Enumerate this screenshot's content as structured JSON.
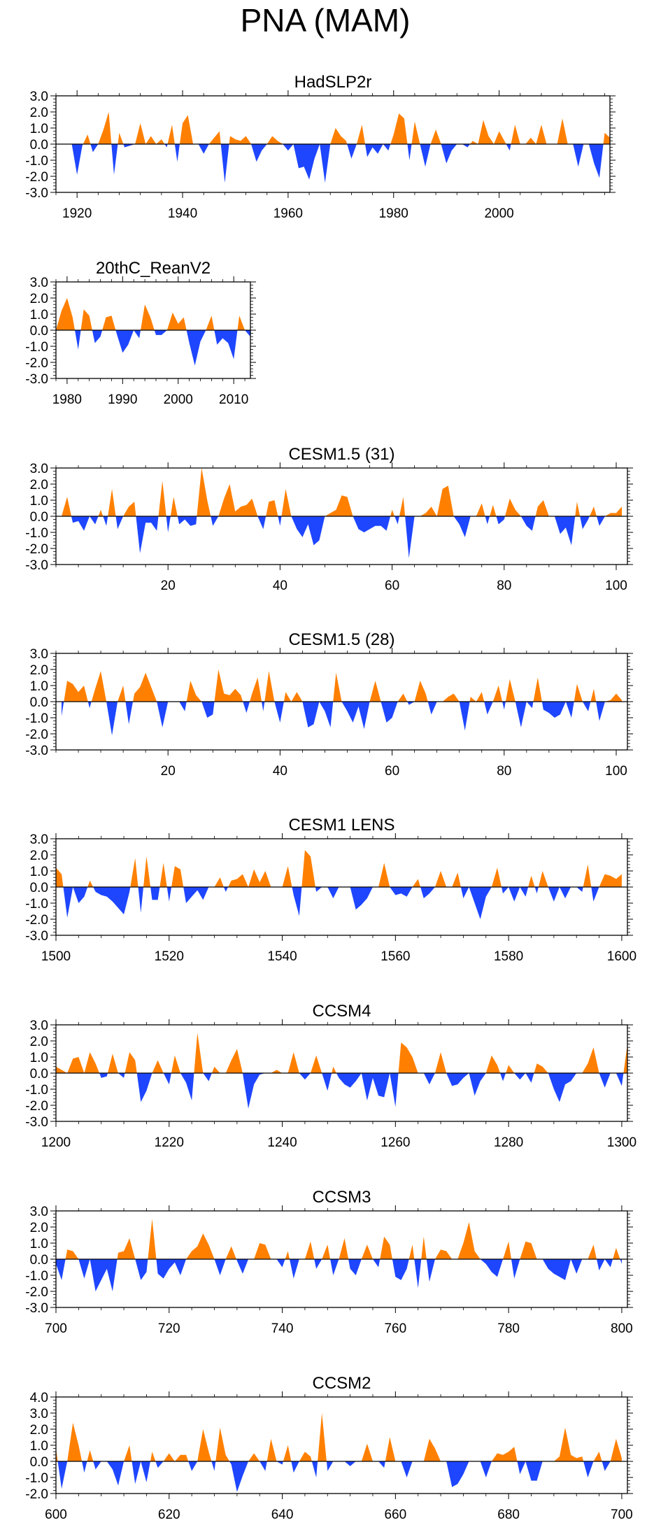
{
  "page_title": "PNA (MAM)",
  "colors": {
    "positive": "#ff8000",
    "negative": "#1e46ff",
    "axis": "#000000"
  },
  "chart_data": [
    {
      "type": "area",
      "title": "HadSLP2r",
      "xlim": [
        1916,
        2021
      ],
      "ylim": [
        -3.0,
        3.0
      ],
      "yticks": [
        -3.0,
        -2.0,
        -1.0,
        0.0,
        1.0,
        2.0,
        3.0
      ],
      "xticks": [
        1920,
        1940,
        1960,
        1980,
        2000
      ],
      "x_start": 1916,
      "values": [
        0,
        0,
        0,
        0,
        -1.9,
        -0.1,
        0.6,
        -0.5,
        0.0,
        0.9,
        2.0,
        -1.9,
        0.7,
        -0.2,
        -0.1,
        0.0,
        1.3,
        0.0,
        0.5,
        0.0,
        0.3,
        -0.2,
        1.2,
        -1.1,
        1.3,
        1.8,
        0.0,
        0.0,
        -0.6,
        0.0,
        0.4,
        0.8,
        -2.4,
        0.5,
        0.3,
        0.2,
        0.5,
        0.0,
        -1.1,
        -0.4,
        0.0,
        0.5,
        0.2,
        0.0,
        -0.4,
        0.0,
        -1.5,
        -1.4,
        -2.2,
        -0.9,
        0.0,
        -2.4,
        0.0,
        1.0,
        0.5,
        0.2,
        -0.9,
        0.0,
        1.2,
        -0.8,
        -0.2,
        -0.6,
        0.0,
        -0.4,
        0.6,
        1.9,
        1.6,
        -1.0,
        1.4,
        0.0,
        -1.4,
        0.0,
        0.9,
        0.0,
        -1.2,
        -0.4,
        0.0,
        0.0,
        -0.2,
        0.2,
        0.0,
        1.5,
        0.5,
        0.0,
        0.8,
        0.2,
        -0.4,
        1.2,
        0.0,
        0.0,
        0.4,
        0.0,
        1.2,
        0.0,
        0.0,
        0.0,
        1.6,
        0.0,
        0.0,
        -1.4,
        0.0,
        0.0,
        -1.2,
        -2.1,
        0.7,
        0.4
      ]
    },
    {
      "type": "area",
      "title": "20thC_ReanV2",
      "xlim": [
        1978,
        2013
      ],
      "ylim": [
        -3.0,
        3.0
      ],
      "yticks": [
        -3.0,
        -2.0,
        -1.0,
        0.0,
        1.0,
        2.0,
        3.0
      ],
      "xticks": [
        1980,
        1990,
        2000,
        2010
      ],
      "x_start": 1978,
      "values": [
        0,
        1.2,
        2.0,
        0.8,
        -1.2,
        1.3,
        0.9,
        -0.8,
        -0.4,
        0.8,
        0.9,
        -0.3,
        -1.4,
        -0.9,
        0.0,
        -0.5,
        1.6,
        0.8,
        -0.3,
        -0.3,
        0.0,
        1.1,
        0.4,
        0.8,
        -0.8,
        -2.2,
        -0.7,
        0.0,
        0.9,
        -0.9,
        -0.5,
        -0.8,
        -1.8,
        0.9,
        0.0,
        -0.4
      ]
    },
    {
      "type": "area",
      "title": "CESM1.5 (31)",
      "xlim": [
        0,
        102
      ],
      "ylim": [
        -3.0,
        3.0
      ],
      "yticks": [
        -3.0,
        -2.0,
        -1.0,
        0.0,
        1.0,
        2.0,
        3.0
      ],
      "xticks": [
        20,
        40,
        60,
        80,
        100
      ],
      "x_start": 1,
      "values": [
        0.0,
        1.2,
        -0.4,
        -0.3,
        -0.9,
        0.0,
        -0.5,
        0.4,
        -0.6,
        1.7,
        -0.8,
        0.0,
        0.6,
        0.9,
        -2.3,
        -0.4,
        -0.4,
        -0.9,
        2.2,
        -1.0,
        1.2,
        -0.5,
        -0.2,
        -0.6,
        -0.5,
        3.0,
        1.0,
        -0.6,
        0.0,
        1.1,
        2.0,
        0.3,
        0.6,
        0.7,
        1.1,
        0.0,
        -0.8,
        0.9,
        1.0,
        -0.6,
        1.7,
        0.0,
        -0.8,
        -1.3,
        -0.5,
        -1.8,
        -1.5,
        0.0,
        0.2,
        0.4,
        1.3,
        1.2,
        0.0,
        -0.8,
        -1.0,
        -0.8,
        -0.6,
        -0.6,
        -0.9,
        0.4,
        -0.5,
        1.2,
        -2.6,
        0.0,
        0.0,
        0.2,
        0.6,
        0.0,
        1.7,
        1.9,
        0.0,
        -0.5,
        -1.3,
        0.0,
        0.0,
        0.8,
        -0.5,
        0.7,
        -0.5,
        -0.2,
        1.1,
        0.4,
        0.0,
        -0.6,
        -0.9,
        0.6,
        1.0,
        0.0,
        0.0,
        -1.1,
        -0.7,
        -1.8,
        0.9,
        -0.8,
        -0.2,
        0.6,
        -0.6,
        0.0,
        0.2,
        0.2,
        0.6
      ]
    },
    {
      "type": "area",
      "title": "CESM1.5 (28)",
      "xlim": [
        0,
        102
      ],
      "ylim": [
        -3.0,
        3.0
      ],
      "yticks": [
        -3.0,
        -2.0,
        -1.0,
        0.0,
        1.0,
        2.0,
        3.0
      ],
      "xticks": [
        20,
        40,
        60,
        80,
        100
      ],
      "x_start": 1,
      "values": [
        -0.9,
        1.3,
        1.1,
        0.6,
        1.0,
        -0.4,
        0.8,
        1.9,
        0.0,
        -2.1,
        0.0,
        1.0,
        -1.4,
        0.5,
        0.9,
        1.8,
        0.9,
        0.0,
        -1.6,
        0.0,
        0.0,
        0.0,
        -0.6,
        1.3,
        0.4,
        0.0,
        -1.0,
        -0.8,
        2.0,
        0.5,
        0.4,
        0.8,
        0.4,
        -0.7,
        0.5,
        1.5,
        -0.6,
        1.9,
        0.0,
        -1.3,
        0.6,
        0.0,
        0.6,
        0.0,
        -1.6,
        -1.4,
        0.0,
        -0.6,
        -1.6,
        1.8,
        0.0,
        -0.6,
        -1.3,
        -0.3,
        -1.7,
        0.0,
        1.3,
        0.0,
        -1.3,
        -1.0,
        0.0,
        0.5,
        -0.2,
        0.0,
        1.3,
        0.5,
        -0.8,
        0.0,
        0.0,
        0.3,
        0.5,
        0.0,
        -1.8,
        0.3,
        0.0,
        0.6,
        -0.8,
        0.0,
        1.0,
        -0.5,
        1.4,
        0.0,
        -1.6,
        0.0,
        -0.4,
        1.5,
        -0.5,
        -0.7,
        -1.0,
        -0.8,
        0.0,
        -1.0,
        1.1,
        0.0,
        -0.6,
        0.8,
        -1.2,
        0.0,
        0.1,
        0.5,
        0.1
      ]
    },
    {
      "type": "area",
      "title": "CESM1 LENS",
      "xlim": [
        1500,
        1601
      ],
      "ylim": [
        -3.0,
        3.0
      ],
      "yticks": [
        -3.0,
        -2.0,
        -1.0,
        0.0,
        1.0,
        2.0,
        3.0
      ],
      "xticks": [
        1500,
        1520,
        1540,
        1560,
        1580,
        1600
      ],
      "x_start": 1500,
      "values": [
        1.2,
        0.8,
        -1.9,
        0.0,
        -1.0,
        -0.6,
        0.4,
        -0.3,
        -0.5,
        -0.6,
        -0.9,
        -1.3,
        -1.7,
        -0.3,
        1.8,
        -1.6,
        1.9,
        -0.8,
        -0.8,
        1.5,
        -0.9,
        1.3,
        1.1,
        -1.0,
        -0.6,
        -0.2,
        -0.8,
        0.0,
        0.0,
        0.6,
        -0.3,
        0.4,
        0.5,
        0.8,
        0.0,
        1.1,
        0.3,
        1.0,
        0.0,
        0.0,
        0.0,
        1.3,
        -0.5,
        -1.8,
        2.3,
        1.9,
        -0.3,
        0.0,
        0.0,
        -0.7,
        0.0,
        0.0,
        0.0,
        -1.4,
        -1.1,
        -0.7,
        0.0,
        0.0,
        1.5,
        0.0,
        -0.5,
        -0.4,
        -0.6,
        0.0,
        0.5,
        -0.7,
        -0.4,
        0.0,
        1.0,
        0.0,
        0.0,
        0.9,
        -0.7,
        0.0,
        -1.0,
        -2.0,
        -0.6,
        0.0,
        1.2,
        -0.4,
        0.0,
        -0.9,
        0.0,
        -0.6,
        0.7,
        -0.4,
        1.0,
        0.0,
        -0.9,
        0.0,
        -0.7,
        0.0,
        0.0,
        -0.3,
        1.4,
        -0.9,
        0.0,
        0.8,
        0.7,
        0.5,
        0.8
      ]
    },
    {
      "type": "area",
      "title": "CCSM4",
      "xlim": [
        1200,
        1301
      ],
      "ylim": [
        -3.0,
        3.0
      ],
      "yticks": [
        -3.0,
        -2.0,
        -1.0,
        0.0,
        1.0,
        2.0,
        3.0
      ],
      "xticks": [
        1200,
        1220,
        1240,
        1260,
        1280,
        1300
      ],
      "x_start": 1200,
      "values": [
        0.4,
        0.2,
        0.0,
        0.9,
        1.0,
        0.0,
        1.3,
        0.6,
        -0.3,
        -0.2,
        1.2,
        0.0,
        -0.3,
        1.3,
        0.8,
        -1.8,
        -1.1,
        0.0,
        0.8,
        0.0,
        -0.7,
        1.1,
        0.0,
        -0.6,
        -1.7,
        2.5,
        0.0,
        -0.5,
        0.4,
        0.0,
        0.0,
        0.8,
        1.5,
        0.0,
        -2.2,
        -0.7,
        -0.1,
        0.0,
        0.0,
        0.2,
        0.0,
        0.0,
        1.3,
        0.0,
        -0.4,
        0.0,
        1.1,
        0.0,
        -1.1,
        0.4,
        -0.3,
        -0.7,
        -0.9,
        -0.5,
        0.0,
        -1.7,
        -0.3,
        -1.4,
        -1.5,
        0.0,
        -2.1,
        1.9,
        1.6,
        1.0,
        0.0,
        0.0,
        -0.7,
        0.0,
        1.3,
        0.0,
        -0.8,
        -0.7,
        -0.3,
        0.0,
        -1.4,
        -0.5,
        0.0,
        1.1,
        0.5,
        -0.5,
        0.5,
        0.0,
        -0.4,
        0.0,
        -0.6,
        0.6,
        0.4,
        0.0,
        -1.0,
        -1.8,
        -0.7,
        -0.5,
        0.0,
        0.0,
        0.6,
        1.6,
        0.0,
        -0.9,
        0.0,
        0.0,
        -0.8,
        1.8
      ]
    },
    {
      "type": "area",
      "title": "CCSM3",
      "xlim": [
        700,
        801
      ],
      "ylim": [
        -3.0,
        3.0
      ],
      "yticks": [
        -3.0,
        -2.0,
        -1.0,
        0.0,
        1.0,
        2.0,
        3.0
      ],
      "xticks": [
        700,
        720,
        740,
        760,
        780,
        800
      ],
      "x_start": 700,
      "values": [
        -0.3,
        -1.3,
        0.6,
        0.5,
        0.0,
        -1.2,
        0.0,
        -2.0,
        -1.3,
        -0.6,
        -2.0,
        0.4,
        0.5,
        1.3,
        0.0,
        -1.3,
        -0.8,
        2.5,
        -0.9,
        -1.2,
        -0.6,
        -0.2,
        -1.0,
        0.0,
        0.5,
        0.8,
        1.6,
        0.9,
        0.0,
        -1.0,
        0.0,
        0.8,
        -0.1,
        -0.9,
        0.0,
        0.0,
        1.0,
        0.9,
        0.0,
        0.0,
        -0.5,
        0.5,
        -1.2,
        0.0,
        0.0,
        1.1,
        -0.6,
        0.0,
        0.9,
        -1.0,
        0.0,
        1.3,
        -0.6,
        -1.0,
        0.0,
        0.9,
        0.0,
        -0.5,
        1.4,
        0.9,
        -1.1,
        -1.3,
        -0.6,
        0.9,
        -1.8,
        1.4,
        -1.4,
        0.0,
        0.6,
        0.5,
        0.0,
        0.0,
        1.0,
        2.3,
        0.5,
        0.0,
        -0.3,
        -0.8,
        -1.1,
        0.0,
        1.1,
        -1.2,
        0.0,
        1.1,
        1.0,
        0.0,
        0.0,
        -0.6,
        -0.9,
        -1.1,
        -1.3,
        0.0,
        -0.9,
        0.0,
        0.0,
        0.9,
        -0.7,
        0.0,
        -0.5,
        0.7,
        -0.3
      ]
    },
    {
      "type": "area",
      "title": "CCSM2",
      "xlim": [
        600,
        701
      ],
      "ylim": [
        -2.0,
        4.0
      ],
      "yticks": [
        -2.0,
        -1.0,
        0.0,
        1.0,
        2.0,
        3.0,
        4.0
      ],
      "xticks": [
        600,
        620,
        640,
        660,
        680,
        700
      ],
      "x_start": 600,
      "values": [
        0.8,
        -1.7,
        0.0,
        2.4,
        1.0,
        -0.7,
        0.7,
        -0.5,
        0.0,
        0.0,
        -0.5,
        -1.5,
        0.0,
        1.0,
        -1.4,
        0.0,
        -1.3,
        0.6,
        -0.4,
        0.0,
        0.5,
        0.0,
        0.4,
        0.4,
        -0.6,
        0.0,
        2.0,
        0.6,
        -0.6,
        2.1,
        0.4,
        -0.2,
        -1.9,
        -0.9,
        0.0,
        0.5,
        0.0,
        -0.6,
        1.4,
        0.0,
        -0.2,
        1.0,
        -0.7,
        0.0,
        0.6,
        0.3,
        -1.0,
        3.0,
        -0.6,
        0.0,
        0.0,
        0.0,
        -0.3,
        0.0,
        0.0,
        1.1,
        0.0,
        0.0,
        -0.4,
        1.5,
        0.0,
        0.0,
        -1.0,
        0.0,
        0.0,
        0.0,
        1.4,
        0.8,
        0.0,
        0.0,
        -1.6,
        -1.4,
        -0.8,
        0.0,
        0.0,
        0.0,
        -1.0,
        0.0,
        0.5,
        0.4,
        0.6,
        0.9,
        -0.8,
        0.0,
        -1.2,
        -1.2,
        0.0,
        0.0,
        0.0,
        0.3,
        2.1,
        0.4,
        0.2,
        0.3,
        -1.0,
        0.0,
        0.6,
        -0.6,
        0.0,
        1.4,
        0.2
      ]
    }
  ]
}
